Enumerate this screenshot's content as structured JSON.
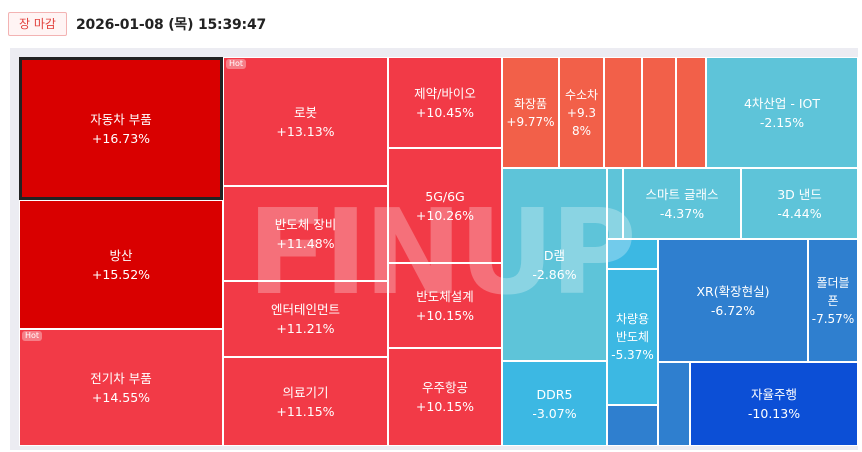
{
  "header": {
    "badge": "장 마감",
    "timestamp": "2026-01-08 (목) 15:39:47"
  },
  "watermark": "FINUP",
  "colors": {
    "up_strong": "#d90000",
    "up": "#f23a47",
    "up_light": "#f26049",
    "down_light": "#5ec4d9",
    "down": "#3cb8e3",
    "down_mid": "#2f7fcf",
    "down_strong": "#0c4fd6",
    "border_selected": "#222222"
  },
  "chart_data": {
    "type": "treemap",
    "title": "",
    "sectors": [
      {
        "name": "자동차 부품",
        "change": "+16.73%",
        "value": 16.73,
        "selected": true
      },
      {
        "name": "방산",
        "change": "+15.52%",
        "value": 15.52
      },
      {
        "name": "전기차 부품",
        "change": "+14.55%",
        "value": 14.55,
        "tag": "Hot"
      },
      {
        "name": "로봇",
        "change": "+13.13%",
        "value": 13.13,
        "tag": "Hot"
      },
      {
        "name": "반도체 장비",
        "change": "+11.48%",
        "value": 11.48
      },
      {
        "name": "엔터테인먼트",
        "change": "+11.21%",
        "value": 11.21
      },
      {
        "name": "의료기기",
        "change": "+11.15%",
        "value": 11.15
      },
      {
        "name": "제약/바이오",
        "change": "+10.45%",
        "value": 10.45
      },
      {
        "name": "5G/6G",
        "change": "+10.26%",
        "value": 10.26
      },
      {
        "name": "반도체설계",
        "change": "+10.15%",
        "value": 10.15
      },
      {
        "name": "우주항공",
        "change": "+10.15%",
        "value": 10.15
      },
      {
        "name": "화장품",
        "change": "+9.77%",
        "value": 9.77
      },
      {
        "name": "수소차",
        "change": "+9.38%",
        "value": 9.38
      },
      {
        "name": "",
        "change": "",
        "value": null
      },
      {
        "name": "",
        "change": "",
        "value": null
      },
      {
        "name": "",
        "change": "",
        "value": null
      },
      {
        "name": "4차산업 - IOT",
        "change": "-2.15%",
        "value": -2.15
      },
      {
        "name": "D램",
        "change": "-2.86%",
        "value": -2.86
      },
      {
        "name": "",
        "change": "",
        "value": null
      },
      {
        "name": "스마트 글래스",
        "change": "-4.37%",
        "value": -4.37
      },
      {
        "name": "3D 낸드",
        "change": "-4.44%",
        "value": -4.44
      },
      {
        "name": "",
        "change": "",
        "value": null
      },
      {
        "name": "차량용 반도체",
        "change": "-5.37%",
        "value": -5.37
      },
      {
        "name": "XR(확장현실)",
        "change": "-6.72%",
        "value": -6.72
      },
      {
        "name": "폴더블폰",
        "change": "-7.57%",
        "value": -7.57
      },
      {
        "name": "DDR5",
        "change": "-3.07%",
        "value": -3.07
      },
      {
        "name": "",
        "change": "",
        "value": null
      },
      {
        "name": "",
        "change": "",
        "value": null
      },
      {
        "name": "자율주행",
        "change": "-10.13%",
        "value": -10.13
      }
    ]
  }
}
